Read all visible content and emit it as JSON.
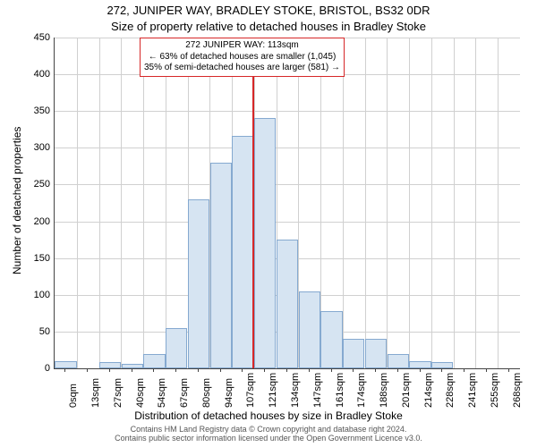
{
  "titles": {
    "main": "272, JUNIPER WAY, BRADLEY STOKE, BRISTOL, BS32 0DR",
    "sub": "Size of property relative to detached houses in Bradley Stoke"
  },
  "axes": {
    "ylabel": "Number of detached properties",
    "xlabel": "Distribution of detached houses by size in Bradley Stoke",
    "ylim": [
      0,
      450
    ],
    "yticks": [
      0,
      50,
      100,
      150,
      200,
      250,
      300,
      350,
      400,
      450
    ],
    "xticks": [
      "0sqm",
      "13sqm",
      "27sqm",
      "40sqm",
      "54sqm",
      "67sqm",
      "80sqm",
      "94sqm",
      "107sqm",
      "121sqm",
      "134sqm",
      "147sqm",
      "161sqm",
      "174sqm",
      "188sqm",
      "201sqm",
      "214sqm",
      "228sqm",
      "241sqm",
      "255sqm",
      "268sqm"
    ]
  },
  "chart": {
    "type": "histogram",
    "values": [
      10,
      0,
      8,
      6,
      20,
      55,
      230,
      280,
      316,
      340,
      175,
      105,
      78,
      40,
      40,
      20,
      10,
      8,
      0,
      0,
      0
    ],
    "bar_fill": "#d6e4f2",
    "bar_border": "#85a9d0",
    "grid_color": "#d0d0d0",
    "background_color": "#ffffff",
    "marker": {
      "x_sqm": 113,
      "color": "#d62728",
      "line1": "272 JUNIPER WAY: 113sqm",
      "line2": "← 63% of detached houses are smaller (1,045)",
      "line3": "35% of semi-detached houses are larger (581) →"
    }
  },
  "footer": {
    "line1": "Contains HM Land Registry data © Crown copyright and database right 2024.",
    "line2": "Contains public sector information licensed under the Open Government Licence v3.0."
  },
  "style": {
    "title_fontsize": 13,
    "axis_label_fontsize": 12,
    "tick_fontsize": 11,
    "footer_fontsize": 9
  }
}
